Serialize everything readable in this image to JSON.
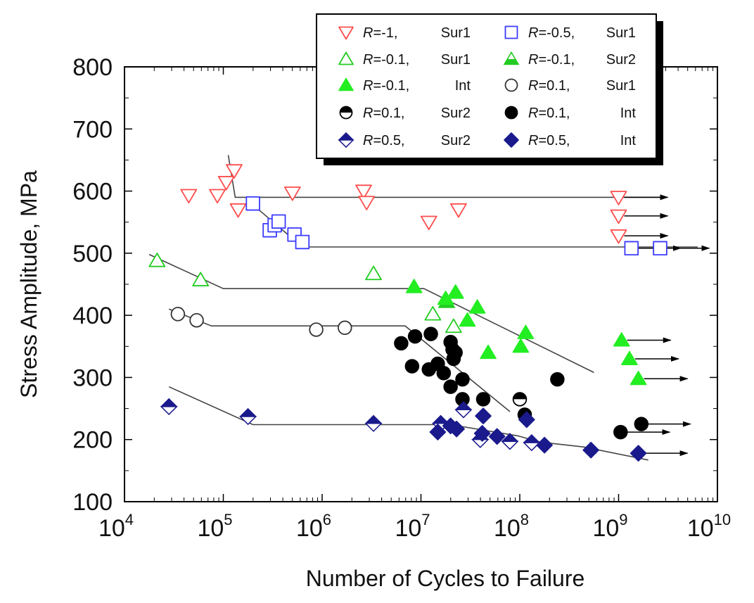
{
  "chart_data": {
    "type": "scatter",
    "title": "",
    "xlabel": "Number of Cycles to Failure",
    "ylabel": "Stress Amplitude, MPa",
    "xscale": "log",
    "xlim_exp": [
      4,
      10
    ],
    "ylim": [
      100,
      800
    ],
    "x_ticks": [
      {
        "exp": 4,
        "base": "10",
        "sup": "4"
      },
      {
        "exp": 5,
        "base": "10",
        "sup": "5"
      },
      {
        "exp": 6,
        "base": "10",
        "sup": "6"
      },
      {
        "exp": 7,
        "base": "10",
        "sup": "7"
      },
      {
        "exp": 8,
        "base": "10",
        "sup": "8"
      },
      {
        "exp": 9,
        "base": "10",
        "sup": "9"
      },
      {
        "exp": 10,
        "base": "10",
        "sup": "10"
      }
    ],
    "y_ticks": [
      "100",
      "200",
      "300",
      "400",
      "500",
      "600",
      "700",
      "800"
    ],
    "legend_position": "top-right",
    "series": [
      {
        "key": "r-1-sur1",
        "name": "R=-1, Sur1",
        "legend": {
          "r": "R",
          "val": "=-1,",
          "site": "Sur1"
        },
        "marker": "triangle-down",
        "fill": "none",
        "color": "#ff4d4d",
        "points": [
          [
            4.65,
            593
          ],
          [
            4.94,
            593
          ],
          [
            5.03,
            614
          ],
          [
            5.11,
            633
          ],
          [
            5.15,
            570
          ],
          [
            5.7,
            597
          ],
          [
            6.42,
            600
          ],
          [
            6.45,
            582
          ],
          [
            7.08,
            550
          ],
          [
            7.38,
            570
          ],
          [
            9.0,
            590
          ],
          [
            9.0,
            560
          ],
          [
            9.0,
            528
          ]
        ]
      },
      {
        "key": "r-05-sur1",
        "name": "R=-0.5, Sur1",
        "legend": {
          "r": "R",
          "val": "=-0.5,",
          "site": "Sur1"
        },
        "marker": "square",
        "fill": "none",
        "color": "#3a3aff",
        "points": [
          [
            5.3,
            580
          ],
          [
            5.47,
            537
          ],
          [
            5.52,
            545
          ],
          [
            5.56,
            551
          ],
          [
            5.72,
            530
          ],
          [
            5.8,
            518
          ],
          [
            9.13,
            508
          ],
          [
            9.42,
            508
          ]
        ]
      },
      {
        "key": "r-01-sur1",
        "name": "R=-0.1, Sur1",
        "legend": {
          "r": "R",
          "val": "=-0.1,",
          "site": "Sur1"
        },
        "marker": "triangle-up",
        "fill": "none",
        "color": "#22cc22",
        "points": [
          [
            4.33,
            488
          ],
          [
            4.77,
            457
          ],
          [
            6.52,
            467
          ],
          [
            7.12,
            402
          ],
          [
            7.33,
            382
          ],
          [
            7.35,
            437
          ]
        ]
      },
      {
        "key": "r-01-sur2",
        "name": "R=-0.1, Sur2",
        "legend": {
          "r": "R",
          "val": "=-0.1,",
          "site": "Sur2"
        },
        "marker": "triangle-up",
        "fill": "half",
        "color": "#22cc22",
        "points": [
          [
            7.26,
            422
          ]
        ]
      },
      {
        "key": "r-01-int",
        "name": "R=-0.1, Int",
        "legend": {
          "r": "R",
          "val": "=-0.1,",
          "site": "Int"
        },
        "marker": "triangle-up",
        "fill": "full",
        "color": "#22ee22",
        "points": [
          [
            6.93,
            446
          ],
          [
            7.25,
            427
          ],
          [
            7.35,
            437
          ],
          [
            7.47,
            392
          ],
          [
            7.57,
            413
          ],
          [
            7.68,
            340
          ],
          [
            8.01,
            350
          ],
          [
            8.06,
            372
          ],
          [
            9.03,
            360
          ],
          [
            9.11,
            330
          ],
          [
            9.2,
            298
          ]
        ]
      },
      {
        "key": "r01-sur1",
        "name": "R=0.1, Sur1",
        "legend": {
          "r": "R",
          "val": "=0.1,",
          "site": "Sur1"
        },
        "marker": "circle",
        "fill": "none",
        "color": "#333333",
        "points": [
          [
            4.54,
            402
          ],
          [
            4.73,
            392
          ],
          [
            5.94,
            377
          ],
          [
            6.23,
            380
          ]
        ]
      },
      {
        "key": "r01-sur2",
        "name": "R=0.1, Sur2",
        "legend": {
          "r": "R",
          "val": "=0.1,",
          "site": "Sur2"
        },
        "marker": "circle",
        "fill": "half",
        "color": "#000000",
        "points": [
          [
            8.0,
            265
          ]
        ]
      },
      {
        "key": "r01-int",
        "name": "R=0.1, Int",
        "legend": {
          "r": "R",
          "val": "=0.1,",
          "site": "Int"
        },
        "marker": "circle",
        "fill": "full",
        "color": "#000000",
        "points": [
          [
            6.8,
            355
          ],
          [
            6.94,
            366
          ],
          [
            6.91,
            318
          ],
          [
            7.08,
            313
          ],
          [
            7.1,
            370
          ],
          [
            7.17,
            322
          ],
          [
            7.23,
            307
          ],
          [
            7.3,
            357
          ],
          [
            7.32,
            345
          ],
          [
            7.3,
            285
          ],
          [
            7.33,
            330
          ],
          [
            7.35,
            340
          ],
          [
            7.42,
            297
          ],
          [
            7.42,
            265
          ],
          [
            7.63,
            265
          ],
          [
            8.05,
            240
          ],
          [
            8.38,
            297
          ],
          [
            9.02,
            212
          ],
          [
            9.23,
            225
          ]
        ]
      },
      {
        "key": "r05-sur2",
        "name": "R=0.5, Sur2",
        "legend": {
          "r": "R",
          "val": "=0.5,",
          "site": "Sur2"
        },
        "marker": "diamond",
        "fill": "half",
        "color": "#1a1a8c",
        "points": [
          [
            4.45,
            253
          ],
          [
            5.25,
            237
          ],
          [
            6.52,
            226
          ],
          [
            7.2,
            226
          ],
          [
            7.43,
            248
          ],
          [
            7.6,
            200
          ],
          [
            7.9,
            197
          ],
          [
            8.12,
            195
          ]
        ]
      },
      {
        "key": "r05-int",
        "name": "R=0.5, Int",
        "legend": {
          "r": "R",
          "val": "=0.5,",
          "site": "Int"
        },
        "marker": "diamond",
        "fill": "full",
        "color": "#1a1a8c",
        "points": [
          [
            7.17,
            212
          ],
          [
            7.3,
            222
          ],
          [
            7.36,
            217
          ],
          [
            7.63,
            238
          ],
          [
            7.62,
            210
          ],
          [
            7.77,
            205
          ],
          [
            8.07,
            232
          ],
          [
            8.25,
            191
          ],
          [
            8.72,
            183
          ],
          [
            9.2,
            178
          ]
        ]
      }
    ],
    "fit_lines": [
      [
        [
          5.05,
          658
        ],
        [
          5.12,
          590
        ],
        [
          9.45,
          590
        ]
      ],
      [
        [
          5.3,
          578
        ],
        [
          5.8,
          510
        ],
        [
          9.8,
          510
        ]
      ],
      [
        [
          4.25,
          498
        ],
        [
          5.0,
          443
        ],
        [
          7.03,
          443
        ],
        [
          8.75,
          308
        ]
      ],
      [
        [
          4.45,
          410
        ],
        [
          4.88,
          383
        ],
        [
          6.84,
          383
        ],
        [
          7.9,
          245
        ]
      ],
      [
        [
          4.45,
          285
        ],
        [
          5.3,
          224
        ],
        [
          7.3,
          224
        ],
        [
          7.98,
          206
        ],
        [
          8.2,
          196
        ],
        [
          8.65,
          188
        ],
        [
          9.3,
          167
        ]
      ]
    ],
    "runout_arrows": [
      [
        9.0,
        590
      ],
      [
        9.0,
        560
      ],
      [
        9.0,
        528
      ],
      [
        9.13,
        508
      ],
      [
        9.42,
        508
      ],
      [
        9.03,
        360
      ],
      [
        9.11,
        330
      ],
      [
        9.2,
        298
      ],
      [
        9.02,
        212
      ],
      [
        9.23,
        225
      ],
      [
        9.2,
        178
      ]
    ]
  }
}
